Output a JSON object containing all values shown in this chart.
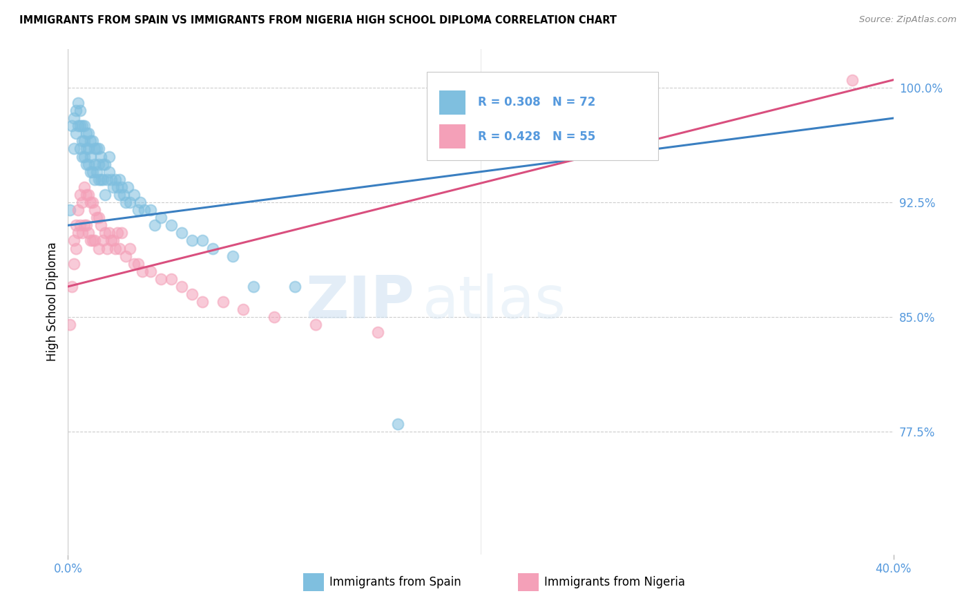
{
  "title": "IMMIGRANTS FROM SPAIN VS IMMIGRANTS FROM NIGERIA HIGH SCHOOL DIPLOMA CORRELATION CHART",
  "source": "Source: ZipAtlas.com",
  "ylabel": "High School Diploma",
  "ytick_labels": [
    "100.0%",
    "92.5%",
    "85.0%",
    "77.5%"
  ],
  "ytick_values": [
    1.0,
    0.925,
    0.85,
    0.775
  ],
  "xlim": [
    0.0,
    0.4
  ],
  "ylim": [
    0.695,
    1.025
  ],
  "legend_r_spain": "R = 0.308",
  "legend_n_spain": "N = 72",
  "legend_r_nigeria": "R = 0.428",
  "legend_n_nigeria": "N = 55",
  "color_spain": "#7fbfdf",
  "color_nigeria": "#f4a0b8",
  "color_spain_line": "#3a7fc1",
  "color_nigeria_line": "#d94f7e",
  "color_axis_text": "#5599dd",
  "watermark_zip": "ZIP",
  "watermark_atlas": "atlas",
  "spain_x": [
    0.001,
    0.002,
    0.003,
    0.003,
    0.004,
    0.004,
    0.005,
    0.005,
    0.006,
    0.006,
    0.006,
    0.007,
    0.007,
    0.007,
    0.008,
    0.008,
    0.008,
    0.009,
    0.009,
    0.009,
    0.01,
    0.01,
    0.01,
    0.011,
    0.011,
    0.011,
    0.012,
    0.012,
    0.013,
    0.013,
    0.013,
    0.014,
    0.014,
    0.015,
    0.015,
    0.015,
    0.016,
    0.016,
    0.017,
    0.017,
    0.018,
    0.018,
    0.019,
    0.02,
    0.02,
    0.021,
    0.022,
    0.023,
    0.024,
    0.025,
    0.025,
    0.026,
    0.027,
    0.028,
    0.029,
    0.03,
    0.032,
    0.034,
    0.035,
    0.037,
    0.04,
    0.042,
    0.045,
    0.05,
    0.055,
    0.06,
    0.065,
    0.07,
    0.08,
    0.09,
    0.11,
    0.16
  ],
  "spain_y": [
    0.92,
    0.975,
    0.98,
    0.96,
    0.985,
    0.97,
    0.99,
    0.975,
    0.985,
    0.975,
    0.96,
    0.975,
    0.965,
    0.955,
    0.975,
    0.965,
    0.955,
    0.97,
    0.96,
    0.95,
    0.97,
    0.96,
    0.95,
    0.965,
    0.955,
    0.945,
    0.965,
    0.945,
    0.96,
    0.95,
    0.94,
    0.96,
    0.945,
    0.96,
    0.95,
    0.94,
    0.955,
    0.94,
    0.95,
    0.94,
    0.95,
    0.93,
    0.94,
    0.955,
    0.945,
    0.94,
    0.935,
    0.94,
    0.935,
    0.94,
    0.93,
    0.935,
    0.93,
    0.925,
    0.935,
    0.925,
    0.93,
    0.92,
    0.925,
    0.92,
    0.92,
    0.91,
    0.915,
    0.91,
    0.905,
    0.9,
    0.9,
    0.895,
    0.89,
    0.87,
    0.87,
    0.78
  ],
  "nigeria_x": [
    0.001,
    0.002,
    0.003,
    0.003,
    0.004,
    0.004,
    0.005,
    0.005,
    0.006,
    0.006,
    0.007,
    0.007,
    0.008,
    0.008,
    0.009,
    0.009,
    0.01,
    0.01,
    0.011,
    0.011,
    0.012,
    0.012,
    0.013,
    0.013,
    0.014,
    0.015,
    0.015,
    0.016,
    0.017,
    0.018,
    0.019,
    0.02,
    0.021,
    0.022,
    0.023,
    0.024,
    0.025,
    0.026,
    0.028,
    0.03,
    0.032,
    0.034,
    0.036,
    0.04,
    0.045,
    0.05,
    0.055,
    0.06,
    0.065,
    0.075,
    0.085,
    0.1,
    0.12,
    0.15,
    0.38
  ],
  "nigeria_y": [
    0.845,
    0.87,
    0.9,
    0.885,
    0.91,
    0.895,
    0.92,
    0.905,
    0.93,
    0.91,
    0.925,
    0.905,
    0.935,
    0.91,
    0.93,
    0.91,
    0.93,
    0.905,
    0.925,
    0.9,
    0.925,
    0.9,
    0.92,
    0.9,
    0.915,
    0.915,
    0.895,
    0.91,
    0.9,
    0.905,
    0.895,
    0.905,
    0.9,
    0.9,
    0.895,
    0.905,
    0.895,
    0.905,
    0.89,
    0.895,
    0.885,
    0.885,
    0.88,
    0.88,
    0.875,
    0.875,
    0.87,
    0.865,
    0.86,
    0.86,
    0.855,
    0.85,
    0.845,
    0.84,
    1.005
  ],
  "spain_line_x": [
    0.0,
    0.4
  ],
  "spain_line_y": [
    0.91,
    0.98
  ],
  "nigeria_line_x": [
    0.0,
    0.4
  ],
  "nigeria_line_y": [
    0.87,
    1.005
  ]
}
